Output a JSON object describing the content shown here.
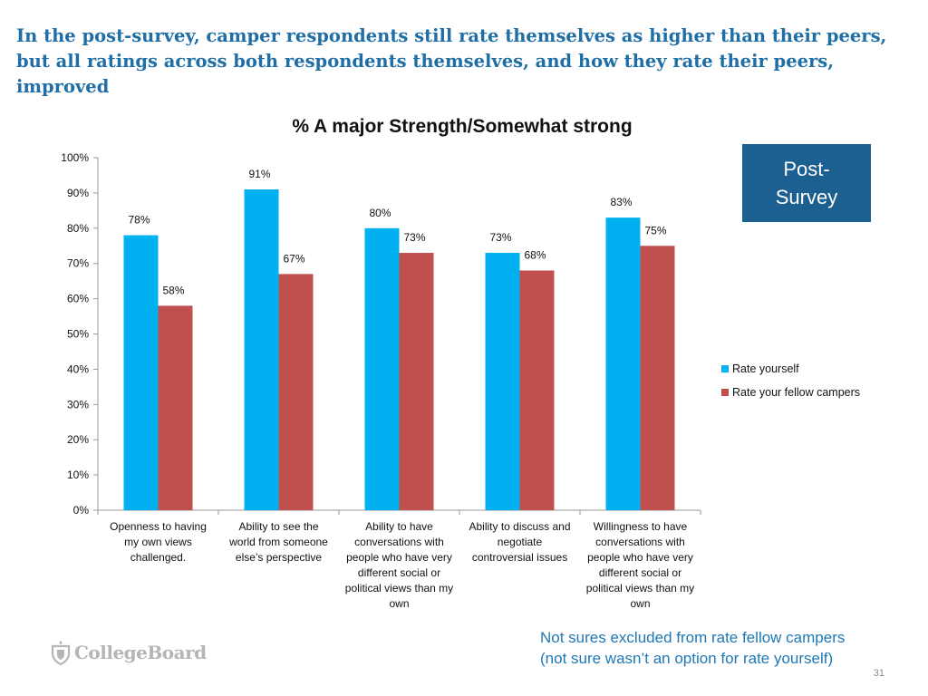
{
  "headline": "In the post-survey, camper respondents still rate themselves as higher than their peers, but all ratings across both respondents themselves, and how they rate their peers, improved",
  "badge": {
    "line1": "Post-",
    "line2": "Survey"
  },
  "note": {
    "line1": "Not sures excluded from rate fellow campers",
    "line2": "(not sure wasn’t an option for rate yourself)"
  },
  "logo": {
    "text": "CollegeBoard"
  },
  "page_number": "31",
  "colors": {
    "headline": "#1f6fa6",
    "series_yourself": "#00b0f0",
    "series_campers": "#c0504d",
    "badge_bg": "#1c5f91",
    "note": "#1f77b4"
  },
  "chart_data": {
    "type": "bar",
    "title": "% A major Strength/Somewhat strong",
    "xlabel": "",
    "ylabel": "",
    "ylim": [
      0,
      100
    ],
    "y_ticks": [
      "0%",
      "10%",
      "20%",
      "30%",
      "40%",
      "50%",
      "60%",
      "70%",
      "80%",
      "90%",
      "100%"
    ],
    "grid": false,
    "legend_position": "right",
    "categories": [
      [
        "Openness to having",
        "my own views",
        "challenged."
      ],
      [
        "Ability to see the",
        "world from someone",
        "else’s perspective"
      ],
      [
        "Ability to have",
        "conversations with",
        "people who have very",
        "different social or",
        "political views than my",
        "own"
      ],
      [
        "Ability to discuss and",
        "negotiate",
        "controversial issues"
      ],
      [
        "Willingness to have",
        "conversations with",
        "people who have very",
        "different social or",
        "political views than my",
        "own"
      ]
    ],
    "series": [
      {
        "name": "Rate yourself",
        "values": [
          78,
          91,
          80,
          73,
          83
        ],
        "labels": [
          "78%",
          "91%",
          "80%",
          "73%",
          "83%"
        ]
      },
      {
        "name": "Rate your fellow campers",
        "values": [
          58,
          67,
          73,
          68,
          75
        ],
        "labels": [
          "58%",
          "67%",
          "73%",
          "68%",
          "75%"
        ]
      }
    ]
  }
}
